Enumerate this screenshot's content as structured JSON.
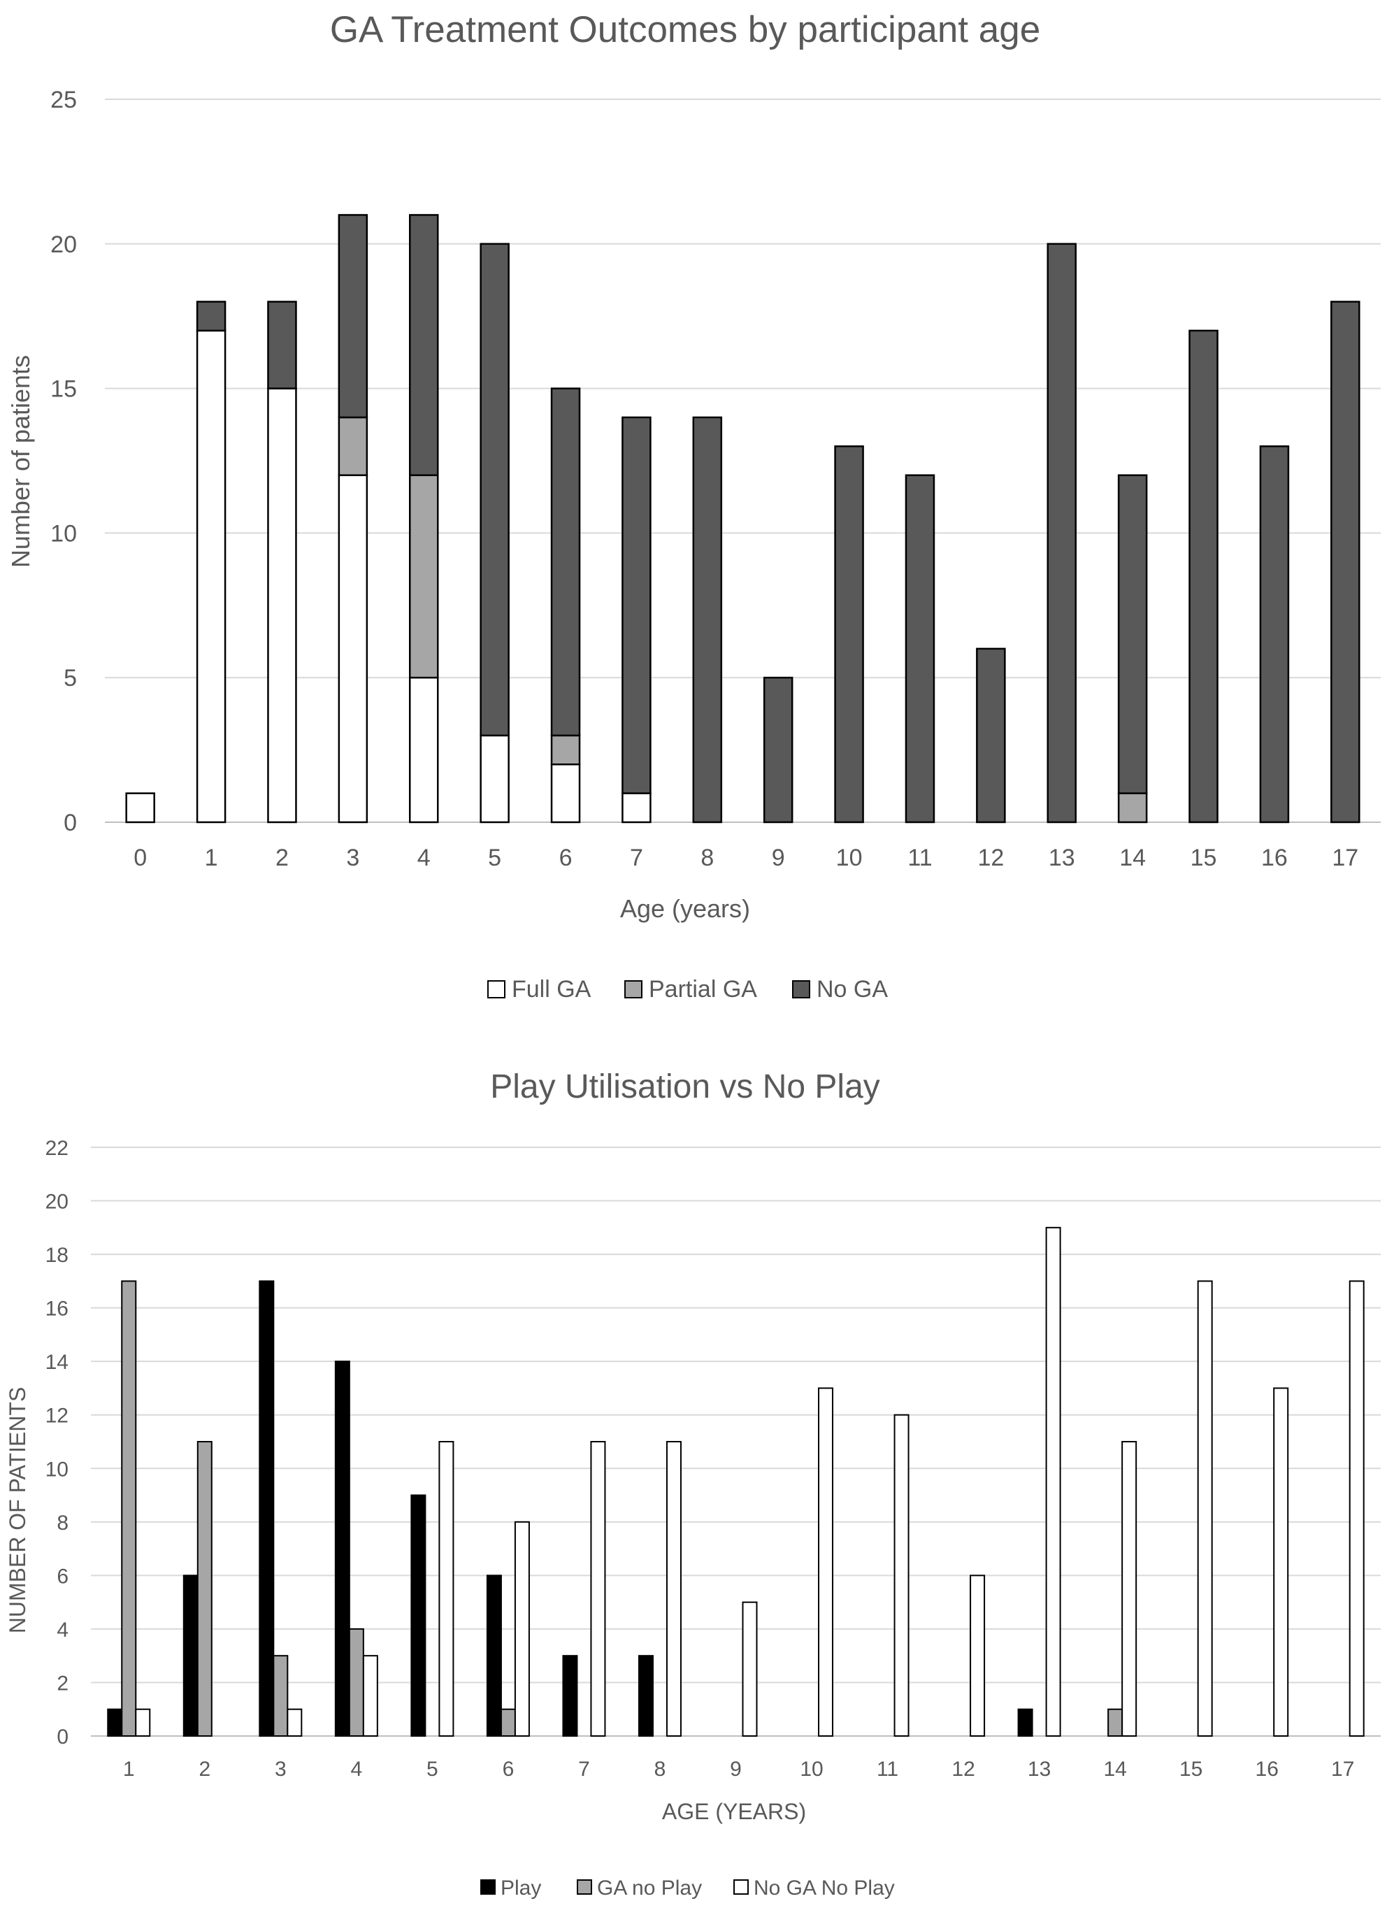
{
  "chart_data": [
    {
      "type": "bar",
      "stacked": true,
      "title": "GA Treatment Outcomes by participant age",
      "xlabel": "Age (years)",
      "ylabel": "Number of patients",
      "categories": [
        "0",
        "1",
        "2",
        "3",
        "4",
        "5",
        "6",
        "7",
        "8",
        "9",
        "10",
        "11",
        "12",
        "13",
        "14",
        "15",
        "16",
        "17"
      ],
      "ylim": [
        0,
        25
      ],
      "yticks": [
        "0",
        "5",
        "10",
        "15",
        "20",
        "25"
      ],
      "grid": true,
      "legend": "bottom",
      "series": [
        {
          "name": "Full GA",
          "color": "#ffffff",
          "values": [
            1,
            17,
            15,
            12,
            5,
            3,
            2,
            1,
            0,
            0,
            0,
            0,
            0,
            0,
            0,
            0,
            0,
            0
          ]
        },
        {
          "name": "Partial GA",
          "color": "#a6a6a6",
          "values": [
            0,
            0,
            0,
            2,
            7,
            0,
            1,
            0,
            0,
            0,
            0,
            0,
            0,
            0,
            1,
            0,
            0,
            0
          ]
        },
        {
          "name": "No GA",
          "color": "#595959",
          "values": [
            0,
            1,
            3,
            7,
            9,
            17,
            12,
            13,
            14,
            5,
            13,
            12,
            6,
            20,
            11,
            17,
            13,
            18
          ]
        }
      ]
    },
    {
      "type": "bar",
      "stacked": false,
      "title": "Play Utilisation vs No Play",
      "xlabel": "AGE (YEARS)",
      "ylabel": "NUMBER OF PATIENTS",
      "categories": [
        "1",
        "2",
        "3",
        "4",
        "5",
        "6",
        "7",
        "8",
        "9",
        "10",
        "11",
        "12",
        "13",
        "14",
        "15",
        "16",
        "17"
      ],
      "ylim": [
        0,
        22
      ],
      "yticks": [
        "0",
        "2",
        "4",
        "6",
        "8",
        "10",
        "12",
        "14",
        "16",
        "18",
        "20",
        "22"
      ],
      "grid": true,
      "legend": "bottom",
      "series": [
        {
          "name": "Play",
          "color": "#000000",
          "values": [
            1,
            6,
            17,
            14,
            9,
            6,
            3,
            3,
            0,
            0,
            0,
            0,
            1,
            0,
            0,
            0,
            0
          ]
        },
        {
          "name": "GA no Play",
          "color": "#a6a6a6",
          "values": [
            17,
            11,
            3,
            4,
            0,
            1,
            0,
            0,
            0,
            0,
            0,
            0,
            0,
            1,
            0,
            0,
            0
          ]
        },
        {
          "name": "No GA No Play",
          "color": "#ffffff",
          "values": [
            1,
            0,
            1,
            3,
            11,
            8,
            11,
            11,
            5,
            13,
            12,
            6,
            19,
            11,
            17,
            13,
            17
          ]
        }
      ]
    }
  ]
}
